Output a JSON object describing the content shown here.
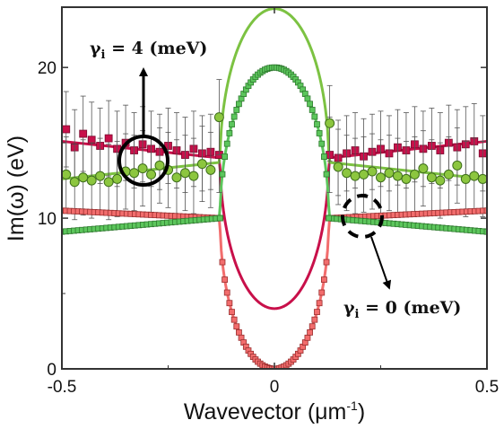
{
  "chart_data": {
    "type": "scatter",
    "title": "",
    "xlabel": "Wavevector (μm",
    "xlabel_sup": "-1",
    "xlabel_close": ")",
    "ylabel": "Im(ω) (eV)",
    "xlim": [
      -0.5,
      0.5
    ],
    "ylim": [
      0,
      24
    ],
    "xticks": [
      -0.5,
      0,
      0.5
    ],
    "xtick_labels": [
      "-0.5",
      "0",
      "0.5"
    ],
    "yticks": [
      0,
      10,
      20
    ],
    "ytick_labels": [
      "0",
      "10",
      "20"
    ],
    "grid": false,
    "legend": "none",
    "branch_edge": 0.128,
    "series": [
      {
        "kind": "curve",
        "case": "gamma_i = 4 meV",
        "color": "#c8104a",
        "outer_left": [
          -0.5,
          15.1
        ],
        "outer_right": [
          0.5,
          15.1
        ],
        "edge_y": 14.0,
        "center_y": 4.0
      },
      {
        "kind": "curve",
        "case": "gamma_i = 4 meV",
        "color": "#7cc242",
        "outer_left": [
          -0.5,
          12.6
        ],
        "outer_right": [
          0.5,
          12.6
        ],
        "edge_y": 13.7,
        "center_y": 23.9
      },
      {
        "kind": "curve",
        "case": "gamma_i = 0 meV",
        "color": "#f26d6d",
        "outer_left": [
          -0.5,
          10.5
        ],
        "outer_right": [
          0.5,
          10.5
        ],
        "edge_y": 10.0,
        "center_y": 0.0
      },
      {
        "kind": "curve",
        "case": "gamma_i = 0 meV",
        "color": "#5cc65c",
        "outer_left": [
          -0.5,
          9.1
        ],
        "outer_right": [
          0.5,
          9.1
        ],
        "edge_y": 10.0,
        "center_y": 20.0
      },
      {
        "kind": "markers",
        "marker": "square",
        "color": "#c8104a",
        "edgecolor": "#7a0a2e",
        "errorbars": true,
        "error": 2.5,
        "x": [
          -0.49,
          -0.47,
          -0.45,
          -0.43,
          -0.41,
          -0.39,
          -0.37,
          -0.35,
          -0.33,
          -0.31,
          -0.29,
          -0.27,
          -0.25,
          -0.23,
          -0.21,
          -0.19,
          -0.17,
          -0.15,
          -0.13,
          0.13,
          0.15,
          0.17,
          0.19,
          0.21,
          0.23,
          0.25,
          0.27,
          0.29,
          0.31,
          0.33,
          0.35,
          0.37,
          0.39,
          0.41,
          0.43,
          0.45,
          0.47,
          0.49
        ],
        "y": [
          15.9,
          14.7,
          15.6,
          15.2,
          14.8,
          15.3,
          14.6,
          15.0,
          14.5,
          14.9,
          14.6,
          14.4,
          14.8,
          14.5,
          14.2,
          14.6,
          14.3,
          14.4,
          14.2,
          14.2,
          14.0,
          14.3,
          14.5,
          14.1,
          14.4,
          14.6,
          14.3,
          14.7,
          14.5,
          14.9,
          14.6,
          14.8,
          14.5,
          15.0,
          14.7,
          14.9,
          15.1,
          14.3
        ]
      },
      {
        "kind": "markers",
        "marker": "circle",
        "color": "#8cc63f",
        "edgecolor": "#3f6f1c",
        "errorbars": true,
        "error": 2.5,
        "x": [
          -0.49,
          -0.47,
          -0.45,
          -0.43,
          -0.41,
          -0.39,
          -0.37,
          -0.35,
          -0.33,
          -0.31,
          -0.29,
          -0.27,
          -0.25,
          -0.23,
          -0.21,
          -0.19,
          -0.17,
          -0.15,
          -0.13,
          0.13,
          0.15,
          0.17,
          0.19,
          0.21,
          0.23,
          0.25,
          0.27,
          0.29,
          0.31,
          0.33,
          0.35,
          0.37,
          0.39,
          0.41,
          0.43,
          0.45,
          0.47,
          0.49
        ],
        "y": [
          12.9,
          12.4,
          12.7,
          12.5,
          12.8,
          12.4,
          12.6,
          13.1,
          13.0,
          13.3,
          12.9,
          13.5,
          13.2,
          12.7,
          13.0,
          12.8,
          13.6,
          13.2,
          16.7,
          16.3,
          13.4,
          13.0,
          12.8,
          12.9,
          13.1,
          12.7,
          13.0,
          12.8,
          12.6,
          12.9,
          13.3,
          12.7,
          12.5,
          12.9,
          13.5,
          12.6,
          12.8,
          12.6
        ]
      },
      {
        "kind": "markers",
        "marker": "square",
        "color": "#f26d6d",
        "edgecolor": "#9a2f2f",
        "errorbars": true,
        "error": 0.15,
        "dense_outer": true,
        "dense_count": 40,
        "on_curve": "gamma_i = 0 meV low branch"
      },
      {
        "kind": "markers",
        "marker": "square",
        "color": "#5cc65c",
        "edgecolor": "#2f7a2f",
        "errorbars": true,
        "error": 0.15,
        "dense_outer": true,
        "dense_count": 40,
        "on_curve": "gamma_i = 0 meV high branch"
      }
    ],
    "annotations": [
      {
        "text": "γ",
        "sub": "i",
        "rest": " = 4 (meV)",
        "target": [
          -0.305,
          14.0
        ]
      },
      {
        "text": "γ",
        "sub": "i",
        "rest": " = 0 (meV)",
        "target": [
          0.22,
          10.0
        ]
      }
    ]
  }
}
